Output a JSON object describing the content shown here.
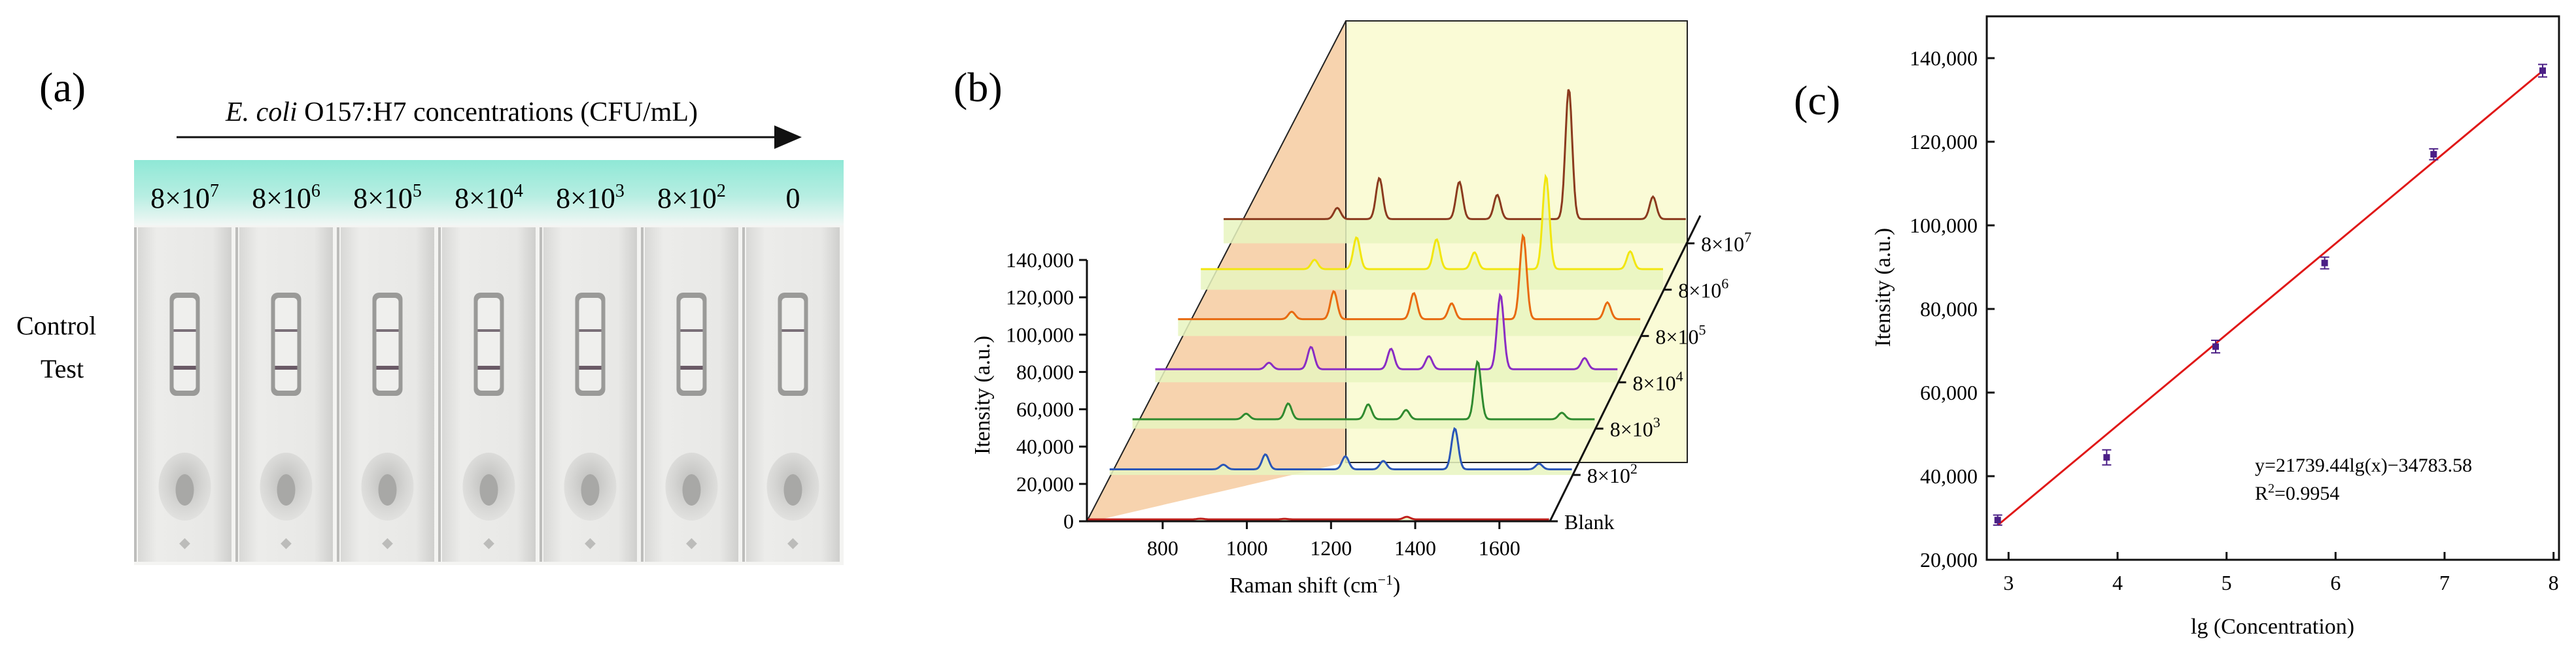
{
  "panels": {
    "a": {
      "label": "(a)",
      "arrow_title_italic": "E. coli",
      "arrow_title_rest": " O157:H7 concentrations (CFU/mL)",
      "row_labels": {
        "control": "Control",
        "test": "Test"
      },
      "strips": [
        {
          "base": "8×10",
          "exp": "7",
          "control_line": true,
          "test_line": true
        },
        {
          "base": "8×10",
          "exp": "6",
          "control_line": true,
          "test_line": true
        },
        {
          "base": "8×10",
          "exp": "5",
          "control_line": true,
          "test_line": true
        },
        {
          "base": "8×10",
          "exp": "4",
          "control_line": true,
          "test_line": true
        },
        {
          "base": "8×10",
          "exp": "3",
          "control_line": true,
          "test_line": true
        },
        {
          "base": "8×10",
          "exp": "2",
          "control_line": true,
          "test_line": true
        },
        {
          "base": "0",
          "exp": "",
          "control_line": true,
          "test_line": false
        }
      ],
      "colors": {
        "header_top": "#8fe8d6",
        "header_bottom": "#f2f7f5",
        "strip": "#e6e6e4"
      }
    },
    "b": {
      "label": "(b)",
      "ylabel": "Itensity (a.u.)",
      "xlabel_base": "Raman shift (cm",
      "xlabel_exp": "−1",
      "xlabel_close": ")"
    },
    "c": {
      "label": "(c)"
    }
  },
  "chart_data": [
    {
      "type": "line",
      "panel": "b",
      "ylabel": "Itensity (a.u.)",
      "xlabel": "Raman shift (cm−1)",
      "xlim": [
        620,
        1720
      ],
      "ylim": [
        0,
        140000
      ],
      "x_ticks": [
        "800",
        "1000",
        "1200",
        "1400",
        "1600"
      ],
      "y_ticks": [
        "0",
        "20,000",
        "40,000",
        "60,000",
        "80,000",
        "100,000",
        "120,000",
        "140,000"
      ],
      "series": [
        {
          "name": "Blank",
          "exp": "",
          "color": "#c0201c",
          "baseline": 1000,
          "peaks": [
            [
              890,
              400
            ],
            [
              1090,
              300
            ],
            [
              1380,
              1400
            ]
          ]
        },
        {
          "name": "8×10",
          "exp": "2",
          "color": "#2a56b8",
          "baseline": 3000,
          "peaks": [
            [
              890,
              2500
            ],
            [
              990,
              8000
            ],
            [
              1180,
              7000
            ],
            [
              1270,
              4500
            ],
            [
              1440,
              22000
            ],
            [
              1640,
              3000
            ]
          ]
        },
        {
          "name": "8×10",
          "exp": "3",
          "color": "#2f8a2f",
          "baseline": 5000,
          "peaks": [
            [
              890,
              3000
            ],
            [
              990,
              8500
            ],
            [
              1180,
              8000
            ],
            [
              1270,
              5000
            ],
            [
              1440,
              31000
            ],
            [
              1640,
              3500
            ]
          ]
        },
        {
          "name": "8×10",
          "exp": "4",
          "color": "#8a2cc4",
          "baseline": 7000,
          "peaks": [
            [
              890,
              3500
            ],
            [
              990,
              12000
            ],
            [
              1180,
              11000
            ],
            [
              1270,
              7000
            ],
            [
              1440,
              40000
            ],
            [
              1640,
              6000
            ]
          ]
        },
        {
          "name": "8×10",
          "exp": "5",
          "color": "#e86a10",
          "baseline": 9000,
          "peaks": [
            [
              890,
              4000
            ],
            [
              990,
              15000
            ],
            [
              1180,
              14000
            ],
            [
              1270,
              8500
            ],
            [
              1440,
              45000
            ],
            [
              1640,
              9000
            ]
          ]
        },
        {
          "name": "8×10",
          "exp": "6",
          "color": "#f2e60e",
          "baseline": 11000,
          "peaks": [
            [
              890,
              5000
            ],
            [
              990,
              17000
            ],
            [
              1180,
              16000
            ],
            [
              1270,
              9000
            ],
            [
              1440,
              50000
            ],
            [
              1640,
              9500
            ]
          ]
        },
        {
          "name": "8×10",
          "exp": "7",
          "color": "#8b3a1e",
          "baseline": 13000,
          "peaks": [
            [
              890,
              6000
            ],
            [
              990,
              22000
            ],
            [
              1180,
              20000
            ],
            [
              1270,
              13000
            ],
            [
              1440,
              70000
            ],
            [
              1640,
              12000
            ]
          ]
        }
      ]
    },
    {
      "type": "scatter",
      "panel": "c",
      "xlabel": "lg (Concentration)",
      "ylabel": "Itensity (a.u.)",
      "xlim": [
        2.8,
        8.05
      ],
      "ylim": [
        20000,
        150000
      ],
      "x_ticks": [
        3,
        4,
        5,
        6,
        7,
        8
      ],
      "y_ticks": [
        "20,000",
        "40,000",
        "60,000",
        "80,000",
        "100,000",
        "120,000",
        "140,000"
      ],
      "x": [
        2.9,
        3.9,
        4.9,
        5.9,
        6.9,
        7.9
      ],
      "y": [
        29500,
        44500,
        71000,
        91000,
        117000,
        137000
      ],
      "errors": [
        1200,
        1800,
        1500,
        1400,
        1300,
        1500
      ],
      "point_color": "#4b1f86",
      "fit": {
        "slope": 21739.44,
        "intercept": -34783.58,
        "color": "#e01818"
      },
      "equation": "y=21739.44lg(x)−34783.58",
      "r2_base": "R",
      "r2_exp": "2",
      "r2_rest": "=0.9954"
    }
  ]
}
